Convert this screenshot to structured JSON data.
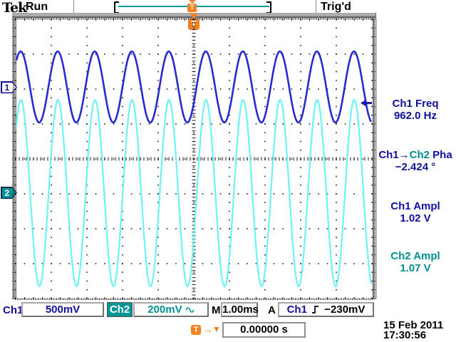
{
  "header": {
    "logo": "Tek",
    "acq_state": "Run",
    "trig_status": "Trig'd"
  },
  "trigger_marker": {
    "label": "T"
  },
  "channel_badges": {
    "ch1": "1",
    "ch2": "2"
  },
  "measurements": {
    "m1": {
      "label": "Ch1 Freq",
      "value": "962.0 Hz"
    },
    "m2": {
      "label_src": "Ch1→",
      "label_dst": "Ch2",
      "label_suffix": " Pha",
      "value": "−2.424 °"
    },
    "m3": {
      "label": "Ch1 Ampl",
      "value": "1.02 V"
    },
    "m4": {
      "label": "Ch2 Ampl",
      "value": "1.07 V"
    }
  },
  "statusbar": {
    "ch1_label": "Ch1",
    "ch1_scale": "500mV",
    "ch2_label": "Ch2",
    "ch2_scale": "200mV",
    "timebase_label": "M",
    "timebase_value": "1.00ms",
    "trig_mode_label": "A",
    "trig_source": "Ch1",
    "trig_level": "−230mV"
  },
  "cursor_bar": {
    "trig_label": "T",
    "arrow": "→",
    "marker": "▼",
    "position": "0.00000 s"
  },
  "datetime": {
    "date": "15 Feb  2011",
    "time": "17:30:56"
  },
  "colors": {
    "ch1_wave": "#2a2ad2",
    "ch1_text": "#10109b",
    "ch2_wave": "#6cf4f4",
    "ch2_text": "#008e8e",
    "orange": "#f5821f",
    "grid_dot": "#1a1a1a"
  },
  "chart_data": {
    "type": "line",
    "title": "",
    "x_divisions": 10,
    "y_divisions": 8,
    "timebase_s_per_div": 0.001,
    "grid": "dotted graticule, center crosshair with minor ticks",
    "series": [
      {
        "name": "Ch1",
        "waveform": "sine",
        "frequency_hz": 962.0,
        "amplitude_pp_v": 1.02,
        "volts_per_div": 0.5,
        "offset_divs_from_center": 2.06,
        "phase_deg": 0.0,
        "color": "#2a2ad2",
        "stroke_px": 2.6
      },
      {
        "name": "Ch2",
        "waveform": "sine",
        "frequency_hz": 962.0,
        "amplitude_pp_v": 1.07,
        "volts_per_div": 0.2,
        "offset_divs_from_center": -0.98,
        "phase_deg": -2.424,
        "color": "#6cf4f4",
        "stroke_px": 2.2
      }
    ],
    "trigger": {
      "source": "Ch1",
      "slope": "rising",
      "level_v": -0.23,
      "horizontal_position_s": 0.0
    }
  }
}
